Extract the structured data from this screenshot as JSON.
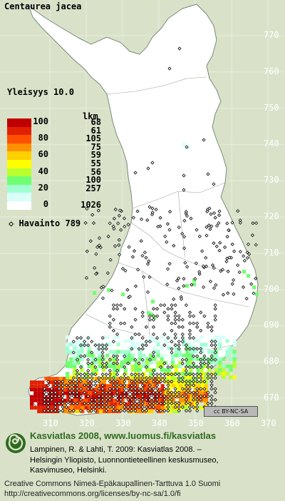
{
  "species": "Centaurea jacea",
  "frequency_label": "Yleisyys  10.0",
  "legend": {
    "count_header": "lkm",
    "classes": [
      {
        "label": "100",
        "color": "#c00000",
        "count": "68"
      },
      {
        "label": "",
        "color": "#e02000",
        "count": "61"
      },
      {
        "label": "80",
        "color": "#ff5000",
        "count": "105"
      },
      {
        "label": "",
        "color": "#ff9000",
        "count": "75"
      },
      {
        "label": "60",
        "color": "#ffd000",
        "count": "59"
      },
      {
        "label": "",
        "color": "#ffff00",
        "count": "55"
      },
      {
        "label": "40",
        "color": "#b8ff30",
        "count": "56"
      },
      {
        "label": "",
        "color": "#70ff70",
        "count": "100"
      },
      {
        "label": "20",
        "color": "#a0ffd0",
        "count": "257"
      },
      {
        "label": "",
        "color": "#d8fff8",
        "count": ""
      },
      {
        "label": "0",
        "color": "#ffffff",
        "count": "1026"
      }
    ]
  },
  "observation_label": "◇ Havainto  789",
  "y_grid_labels": [
    "770",
    "760",
    "750",
    "740",
    "730",
    "720",
    "710",
    "700",
    "690",
    "680",
    "670"
  ],
  "x_grid_labels": [
    "310",
    "320",
    "330",
    "340",
    "350",
    "360",
    "370"
  ],
  "license_badge": "cc BY-NC-SA",
  "footer": {
    "title": "Kasviatlas 2008, www.luomus.fi/kasviatlas",
    "citation_1": "Lampinen, R. & Lahti, T. 2009: Kasviatlas 2008. –",
    "citation_2": "Helsingin Yliopisto, Luonnontieteellinen keskusmuseo,",
    "citation_3": "Kasvimuseo, Helsinki.",
    "license_1": "Creative Commons Nimeä-Epäkaupallinen-Tarttuva 1.0 Suomi",
    "license_2": "http://creativecommons.org/licenses/by-nc-sa/1.0/fi"
  },
  "colors": {
    "background": "#d9e2c9",
    "land": "#ffffff",
    "grid": "#e8eede",
    "border": "#7a8a7a",
    "brand_green": "#2e6a1e"
  }
}
